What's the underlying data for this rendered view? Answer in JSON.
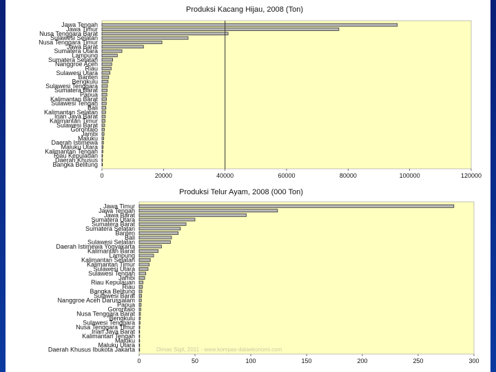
{
  "colors": {
    "slide_top": "#0a1f77",
    "slide_bottom": "#0b3aa0",
    "panel_bg": "#ffffff",
    "plot_bg": "#ffffc0",
    "bar_fill": "#b8b8b8",
    "bar_stroke": "#222222",
    "ref_line": "#333333"
  },
  "chart_data": [
    {
      "type": "bar",
      "orientation": "horizontal",
      "title": "Produksi Kacang Hijau, 2008 (Ton)",
      "categories": [
        "Jawa Tengah",
        "Jawa Timur",
        "Nusa Tenggara Barat",
        "Sulawesi Selatan",
        "Nusa Tenggara Timur",
        "Jawa Barat",
        "Sumatera Utara",
        "Lampung",
        "Sumatera Selatan",
        "Nanggroe Aceh",
        "Riau",
        "Sulawesi Utara",
        "Banten",
        "Bengkulu",
        "Sulawesi Tenggara",
        "Sumatera Barat",
        "Papua",
        "Kalimantan Barat",
        "Sulawesi Tengah",
        "Bali",
        "Kalimantan Selatan",
        "Irian Jaya Barat",
        "Kalimantan Timur",
        "Sulawesi Barat",
        "Gorontalo",
        "Jambi",
        "Maluku",
        "Daerah Istimewa",
        "Maluku Utara",
        "Kalimantan Tengah",
        "Riau Kepulauan",
        "Daerah Khusus",
        "Bangka Belitung"
      ],
      "values": [
        96000,
        77000,
        41000,
        28000,
        19500,
        13500,
        6500,
        5000,
        3500,
        3200,
        3000,
        2600,
        2200,
        2000,
        1800,
        1700,
        1600,
        1500,
        1400,
        1300,
        1200,
        1100,
        1000,
        900,
        800,
        700,
        600,
        500,
        400,
        300,
        200,
        100,
        50
      ],
      "reference_line": 40000,
      "xlim": [
        0,
        120000
      ],
      "xticks": [
        "0",
        "20000",
        "40000",
        "60000",
        "80000",
        "100000",
        "120000"
      ],
      "xlabel": "",
      "ylabel": ""
    },
    {
      "type": "bar",
      "orientation": "horizontal",
      "title": "Produksi Telur Ayam, 2008 (000 Ton)",
      "categories": [
        "Jawa Timur",
        "Jawa Tengah",
        "Jawa Barat",
        "Sumatera Utara",
        "Sumatera Barat",
        "Sumatera Selatan",
        "Banten",
        "Bali",
        "Sulawesi Selatan",
        "Daerah Istimewa Yogyakarta",
        "Kalimantan Barat",
        "Lampung",
        "Kalimantan Selatan",
        "Kalimantan Timur",
        "Sulawesi Utara",
        "Sulawesi Tengah",
        "Jambi",
        "Riau Kepulauan",
        "Riau",
        "Bangka Belitung",
        "Sulawesi Barat",
        "Nanggroe Aceh Darussalam",
        "Papua",
        "Gorontalo",
        "Nusa Tenggara Barat",
        "Bengkulu",
        "Sulawesi Tenggara",
        "Nusa Tenggara Timur",
        "Irian Jaya Barat",
        "Kalimantan Tengah",
        "Maluku",
        "Maluku Utara",
        "Daerah Khusus Ibukota Jakarta"
      ],
      "values": [
        282,
        124,
        96,
        50,
        42,
        37,
        35,
        29,
        28,
        20,
        17,
        13,
        10,
        9,
        8,
        6,
        5,
        3.5,
        3,
        2.5,
        2.2,
        2,
        1.8,
        1.5,
        1.2,
        1,
        0.8,
        0.6,
        0.5,
        0.4,
        0.3,
        0.2,
        0.1
      ],
      "xlim": [
        0,
        300
      ],
      "xticks": [
        "0",
        "50",
        "100",
        "150",
        "200",
        "250",
        "300"
      ],
      "xlabel": "",
      "ylabel": "",
      "watermark": "Dimas Sigit, 2011 - www.kompas-dataekonomi.com"
    }
  ]
}
